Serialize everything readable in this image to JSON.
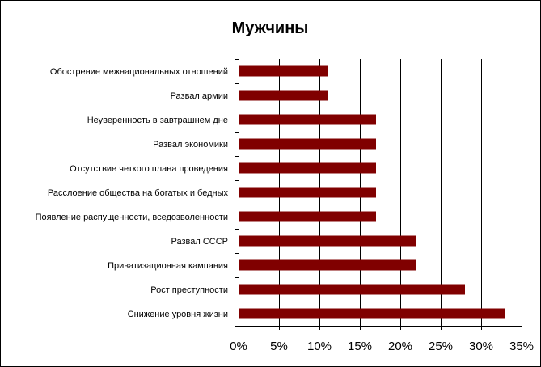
{
  "chart_data": {
    "type": "bar",
    "orientation": "horizontal",
    "title": "Мужчины",
    "xlabel": "",
    "ylabel": "",
    "categories": [
      "Обострение межнациональных отношений",
      "Развал армии",
      "Неуверенность в завтрашнем дне",
      "Развал экономики",
      "Отсутствие четкого плана проведения",
      "Расслоение общества на богатых и бедных",
      "Появление распущенности, вседозволенности",
      "Развал СССР",
      "Приватизационная кампания",
      "Рост преступности",
      "Снижение уровня жизни"
    ],
    "values": [
      11,
      11,
      17,
      17,
      17,
      17,
      17,
      22,
      22,
      28,
      33
    ],
    "xlim": [
      0,
      35
    ],
    "xticks": [
      0,
      5,
      10,
      15,
      20,
      25,
      30,
      35
    ],
    "tick_labels": [
      "0%",
      "5%",
      "10%",
      "15%",
      "20%",
      "25%",
      "30%",
      "35%"
    ],
    "grid": true,
    "legend": "none",
    "bar_color": "#800000"
  }
}
